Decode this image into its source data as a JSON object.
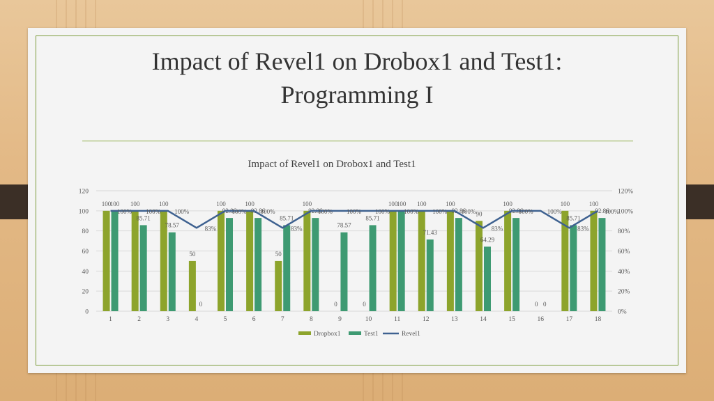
{
  "slide": {
    "title_line1": "Impact of Revel1 on Drobox1 and Test1:",
    "title_line2": "Programming I"
  },
  "colors": {
    "dropbox": "#8da42c",
    "test": "#3e9a72",
    "revel": "#3e6190",
    "grid": "#d9d9d9",
    "axis_text": "#595959"
  },
  "chart_data": {
    "type": "bar",
    "title": "Impact of Revel1 on Drobox1 and Test1",
    "categories": [
      "1",
      "2",
      "3",
      "4",
      "5",
      "6",
      "7",
      "8",
      "9",
      "10",
      "11",
      "12",
      "13",
      "14",
      "15",
      "16",
      "17",
      "18"
    ],
    "ylim": [
      0,
      120
    ],
    "y2lim": [
      0,
      120
    ],
    "yticks": [
      "0",
      "20",
      "40",
      "60",
      "80",
      "100",
      "120"
    ],
    "y2ticks": [
      "0%",
      "20%",
      "40%",
      "60%",
      "80%",
      "100%",
      "120%"
    ],
    "legend_position": "bottom",
    "grid": true,
    "series": [
      {
        "name": "Dropbox1",
        "type": "bar",
        "values": [
          100,
          100,
          100,
          50,
          100,
          100,
          50,
          100,
          0,
          0,
          100,
          100,
          100,
          90,
          100,
          0,
          100,
          100
        ],
        "labels": [
          "100",
          "100",
          "100",
          "50",
          "100",
          "100",
          "50",
          "100",
          "0",
          "0",
          "100",
          "100",
          "100",
          "90",
          "100",
          "0",
          "100",
          "100"
        ]
      },
      {
        "name": "Test1",
        "type": "bar",
        "values": [
          100,
          85.71,
          78.57,
          0,
          92.86,
          92.86,
          85.71,
          92.86,
          78.57,
          85.71,
          100,
          71.43,
          92.86,
          64.29,
          92.86,
          0,
          85.71,
          92.86
        ],
        "labels": [
          "100",
          "85.71",
          "78.57",
          "0",
          "92.86",
          "92.86",
          "85.71",
          "92.86",
          "78.57",
          "85.71",
          "100",
          "71.43",
          "92.86",
          "64.29",
          "92.86",
          "0",
          "85.71",
          "92.86"
        ]
      },
      {
        "name": "Revel1",
        "type": "line",
        "axis": "secondary",
        "values": [
          100,
          100,
          100,
          83,
          100,
          100,
          83,
          100,
          100,
          100,
          100,
          100,
          100,
          83,
          100,
          100,
          83,
          100
        ],
        "labels": [
          "100%",
          "100%",
          "100%",
          "83%",
          "100%",
          "100%",
          "83%",
          "100%",
          "100%",
          "100%",
          "100%",
          "100%",
          "100%",
          "83%",
          "100%",
          "100%",
          "83%",
          "100%"
        ]
      }
    ]
  }
}
